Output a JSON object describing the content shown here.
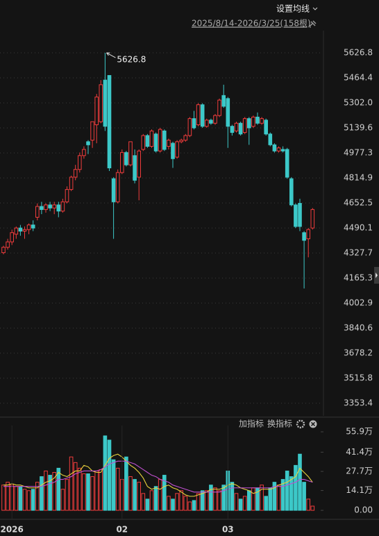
{
  "header": {
    "ma_button": "设置均线",
    "date_range": "2025/8/14-2026/3/25(158根)"
  },
  "indicator_bar": {
    "add": "加指标",
    "switch": "换指标"
  },
  "chart_data": [
    {
      "type": "candlestick",
      "up_color": "#f03c3c",
      "down_color": "#3cc8c8",
      "grid": true,
      "open": [
        4330,
        4365,
        4400,
        4450,
        4490,
        4470,
        4480,
        4510,
        4560,
        4630,
        4610,
        4640,
        4620,
        4640,
        4600,
        4660,
        4740,
        4820,
        4870,
        4960,
        5050,
        5060,
        5160,
        5180,
        5450,
        5480,
        4810,
        4660,
        4850,
        4980,
        4900,
        4960,
        4820,
        5000,
        5090,
        5020,
        5100,
        4990,
        5120,
        5020,
        5040,
        4950,
        5050,
        5060,
        5090,
        5200,
        5160,
        5290,
        5150,
        5190,
        5170,
        5220,
        5350,
        5330,
        5150,
        5120,
        5170,
        5110,
        5200,
        5150,
        5210,
        5170,
        5190,
        5100,
        5030,
        4990,
        5000,
        5000,
        4810,
        4640,
        4650,
        4460,
        4420,
        4490
      ],
      "high": [
        4375,
        4420,
        4480,
        4500,
        4510,
        4500,
        4520,
        4540,
        4650,
        4660,
        4650,
        4660,
        4660,
        4660,
        4680,
        4760,
        4830,
        4900,
        4980,
        5020,
        5060,
        5180,
        5360,
        5450,
        5626.8,
        5480,
        4820,
        4870,
        5000,
        4990,
        5050,
        5000,
        5000,
        5100,
        5100,
        5130,
        5110,
        5140,
        5130,
        5070,
        5050,
        5060,
        5070,
        5100,
        5210,
        5250,
        5300,
        5300,
        5200,
        5200,
        5230,
        5330,
        5420,
        5340,
        5160,
        5180,
        5180,
        5210,
        5210,
        5220,
        5240,
        5210,
        5200,
        5110,
        5040,
        5020,
        5020,
        5010,
        4820,
        4650,
        4680,
        4470,
        4490,
        4620
      ],
      "low": [
        4320,
        4350,
        4380,
        4420,
        4440,
        4420,
        4450,
        4470,
        4540,
        4580,
        4590,
        4600,
        4580,
        4560,
        4590,
        4650,
        4730,
        4800,
        4850,
        4940,
        4970,
        5010,
        5040,
        5170,
        5120,
        4860,
        4420,
        4650,
        4840,
        4890,
        4890,
        4780,
        4670,
        4990,
        5010,
        5010,
        4980,
        4980,
        4990,
        5000,
        4880,
        4940,
        5040,
        5050,
        5080,
        5130,
        5150,
        5140,
        5140,
        5160,
        5160,
        5210,
        5270,
        5010,
        5090,
        5110,
        5090,
        5100,
        5030,
        5140,
        5160,
        5160,
        5090,
        5020,
        4980,
        4980,
        4980,
        4810,
        4630,
        4490,
        4470,
        4098,
        4300,
        4480
      ],
      "close": [
        4365,
        4400,
        4460,
        4490,
        4470,
        4480,
        4510,
        4490,
        4630,
        4610,
        4640,
        4620,
        4640,
        4600,
        4660,
        4740,
        4820,
        4870,
        4960,
        5000,
        5030,
        5180,
        5340,
        5420,
        5150,
        4880,
        4660,
        4850,
        4980,
        4900,
        5050,
        4800,
        4990,
        5090,
        5020,
        5120,
        4990,
        5130,
        5000,
        5060,
        4940,
        5050,
        5060,
        5090,
        5200,
        5140,
        5290,
        5150,
        5190,
        5170,
        5220,
        5320,
        5280,
        5150,
        5110,
        5170,
        5100,
        5200,
        5140,
        5210,
        5170,
        5200,
        5100,
        5030,
        4990,
        5010,
        4990,
        4820,
        4640,
        4500,
        4500,
        4410,
        4480,
        4610
      ],
      "ylim": [
        3272.2,
        5969.6
      ],
      "yticks": [
        5626.8,
        5464.4,
        {
          "value": 5302.0,
          "label": "5302.0"
        },
        5139.6,
        4977.3,
        4814.9,
        4652.5,
        4490.1,
        4327.7,
        4165.3,
        4002.9,
        3840.6,
        3678.2,
        3515.8,
        3353.4
      ],
      "peak_index": 24
    },
    {
      "type": "bar",
      "categories": [
        null,
        null,
        "2026",
        null,
        null,
        null,
        null,
        null,
        null,
        null,
        null,
        null,
        null,
        null,
        null,
        null,
        null,
        null,
        null,
        null,
        null,
        null,
        null,
        null,
        null,
        null,
        null,
        null,
        "02",
        null,
        null,
        null,
        null,
        null,
        null,
        null,
        null,
        null,
        null,
        null,
        null,
        null,
        null,
        null,
        null,
        null,
        null,
        null,
        null,
        null,
        null,
        null,
        null,
        "03",
        null,
        null,
        null,
        null,
        null,
        null,
        null,
        null,
        null,
        null,
        null,
        null,
        null,
        null,
        null,
        null,
        null,
        null,
        null,
        null
      ],
      "values": [
        18,
        20,
        18,
        17,
        17,
        15,
        14,
        15,
        20,
        24,
        28,
        25,
        27,
        30,
        15,
        22,
        38,
        34,
        30,
        26,
        26,
        24,
        28,
        29,
        53,
        50,
        36,
        30,
        22,
        38,
        24,
        22,
        20,
        12,
        8,
        14,
        17,
        22,
        25,
        10,
        8,
        12,
        14,
        10,
        6,
        7,
        12,
        14,
        14,
        18,
        16,
        14,
        18,
        28,
        20,
        12,
        8,
        10,
        14,
        16,
        16,
        18,
        10,
        16,
        20,
        18,
        22,
        28,
        24,
        32,
        40,
        20,
        8,
        3
      ],
      "lines": [
        {
          "color": "#e8d23c",
          "values": [
            18,
            18,
            19,
            18,
            18,
            17,
            16,
            16,
            16,
            18,
            20,
            21,
            23,
            27,
            25,
            24,
            26,
            28,
            28,
            32,
            31,
            28,
            27,
            27,
            32,
            37,
            39,
            40,
            38,
            35,
            32,
            30,
            27,
            23,
            17,
            15,
            16,
            15,
            17,
            18,
            16,
            15,
            13,
            11,
            10,
            10,
            11,
            12,
            13,
            15,
            15,
            15,
            16,
            18,
            19,
            18,
            16,
            15,
            14,
            12,
            13,
            15,
            15,
            15,
            16,
            18,
            19,
            20,
            22,
            24,
            30,
            27,
            24,
            20
          ]
        },
        {
          "color": "#c050d0",
          "values": [
            17,
            17,
            17,
            17,
            17,
            17,
            17,
            17,
            17,
            17,
            18,
            19,
            20,
            22,
            22,
            23,
            24,
            26,
            27,
            28,
            28,
            28,
            28,
            29,
            31,
            33,
            34,
            35,
            35,
            35,
            34,
            33,
            31,
            29,
            27,
            25,
            24,
            22,
            21,
            20,
            18,
            17,
            16,
            15,
            14,
            13,
            13,
            13,
            13,
            13,
            13,
            13,
            14,
            15,
            16,
            16,
            16,
            16,
            16,
            16,
            16,
            16,
            16,
            16,
            17,
            17,
            17,
            18,
            19,
            20,
            22,
            22,
            21,
            20
          ]
        }
      ],
      "ylim": [
        -5.9,
        60.4
      ],
      "yticks": [
        {
          "value": 55.9,
          "label": "55.9万"
        },
        {
          "value": 41.4,
          "label": "41.4万"
        },
        {
          "value": 27.7,
          "label": "27.7万"
        },
        {
          "value": 14.1,
          "label": "14.1万"
        },
        {
          "value": 0,
          "label": "0.00"
        }
      ]
    }
  ]
}
